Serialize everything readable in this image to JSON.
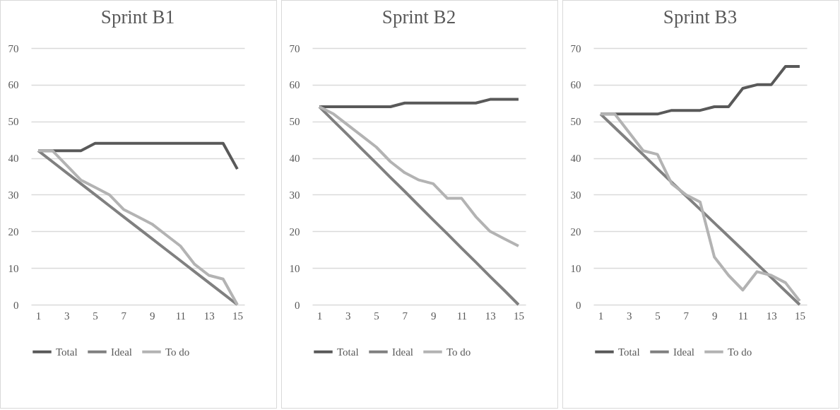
{
  "chart_data": [
    {
      "type": "line",
      "title": "Sprint B1",
      "x": [
        1,
        2,
        3,
        4,
        5,
        6,
        7,
        8,
        9,
        10,
        11,
        12,
        13,
        14,
        15
      ],
      "xlim": [
        0.5,
        15.5
      ],
      "xticks": [
        1,
        3,
        5,
        7,
        9,
        11,
        13,
        15
      ],
      "ylim": [
        0,
        70
      ],
      "yticks": [
        0,
        10,
        20,
        30,
        40,
        50,
        60,
        70
      ],
      "grid": "y",
      "legend": "bottom",
      "series": [
        {
          "name": "Total",
          "color": "#595959",
          "values": [
            42,
            42,
            42,
            42,
            44,
            44,
            44,
            44,
            44,
            44,
            44,
            44,
            44,
            44,
            37
          ]
        },
        {
          "name": "Ideal",
          "color": "#808080",
          "values": [
            42,
            39,
            36,
            33,
            30,
            27,
            24,
            21,
            18,
            15,
            12,
            9,
            6,
            3,
            0
          ]
        },
        {
          "name": "To do",
          "color": "#b3b3b3",
          "values": [
            42,
            42,
            38,
            34,
            32,
            30,
            26,
            24,
            22,
            19,
            16,
            11,
            8,
            7,
            0
          ]
        }
      ]
    },
    {
      "type": "line",
      "title": "Sprint B2",
      "x": [
        1,
        2,
        3,
        4,
        5,
        6,
        7,
        8,
        9,
        10,
        11,
        12,
        13,
        14,
        15
      ],
      "xlim": [
        0.5,
        15.5
      ],
      "xticks": [
        1,
        3,
        5,
        7,
        9,
        11,
        13,
        15
      ],
      "ylim": [
        0,
        70
      ],
      "yticks": [
        0,
        10,
        20,
        30,
        40,
        50,
        60,
        70
      ],
      "grid": "y",
      "legend": "bottom",
      "series": [
        {
          "name": "Total",
          "color": "#595959",
          "values": [
            54,
            54,
            54,
            54,
            54,
            54,
            55,
            55,
            55,
            55,
            55,
            55,
            56,
            56,
            56
          ]
        },
        {
          "name": "Ideal",
          "color": "#808080",
          "values": [
            54,
            50.1,
            46.3,
            42.4,
            38.6,
            34.7,
            30.9,
            27,
            23.1,
            19.3,
            15.4,
            11.6,
            7.7,
            3.9,
            0
          ]
        },
        {
          "name": "To do",
          "color": "#b3b3b3",
          "values": [
            54,
            52,
            49,
            46,
            43,
            39,
            36,
            34,
            33,
            29,
            29,
            24,
            20,
            18,
            16
          ]
        }
      ]
    },
    {
      "type": "line",
      "title": "Sprint B3",
      "x": [
        1,
        2,
        3,
        4,
        5,
        6,
        7,
        8,
        9,
        10,
        11,
        12,
        13,
        14,
        15
      ],
      "xlim": [
        0.5,
        15.5
      ],
      "xticks": [
        1,
        3,
        5,
        7,
        9,
        11,
        13,
        15
      ],
      "ylim": [
        0,
        70
      ],
      "yticks": [
        0,
        10,
        20,
        30,
        40,
        50,
        60,
        70
      ],
      "grid": "y",
      "legend": "bottom",
      "series": [
        {
          "name": "Total",
          "color": "#595959",
          "values": [
            52,
            52,
            52,
            52,
            52,
            53,
            53,
            53,
            54,
            54,
            59,
            60,
            60,
            65,
            65
          ]
        },
        {
          "name": "Ideal",
          "color": "#808080",
          "values": [
            52,
            48.3,
            44.6,
            40.9,
            37.1,
            33.4,
            29.7,
            26,
            22.3,
            18.6,
            14.9,
            11.1,
            7.4,
            3.7,
            0
          ]
        },
        {
          "name": "To do",
          "color": "#b3b3b3",
          "values": [
            52,
            52,
            47,
            42,
            41,
            33,
            30,
            28,
            13,
            8,
            4,
            9,
            8,
            6,
            1
          ]
        }
      ]
    }
  ]
}
